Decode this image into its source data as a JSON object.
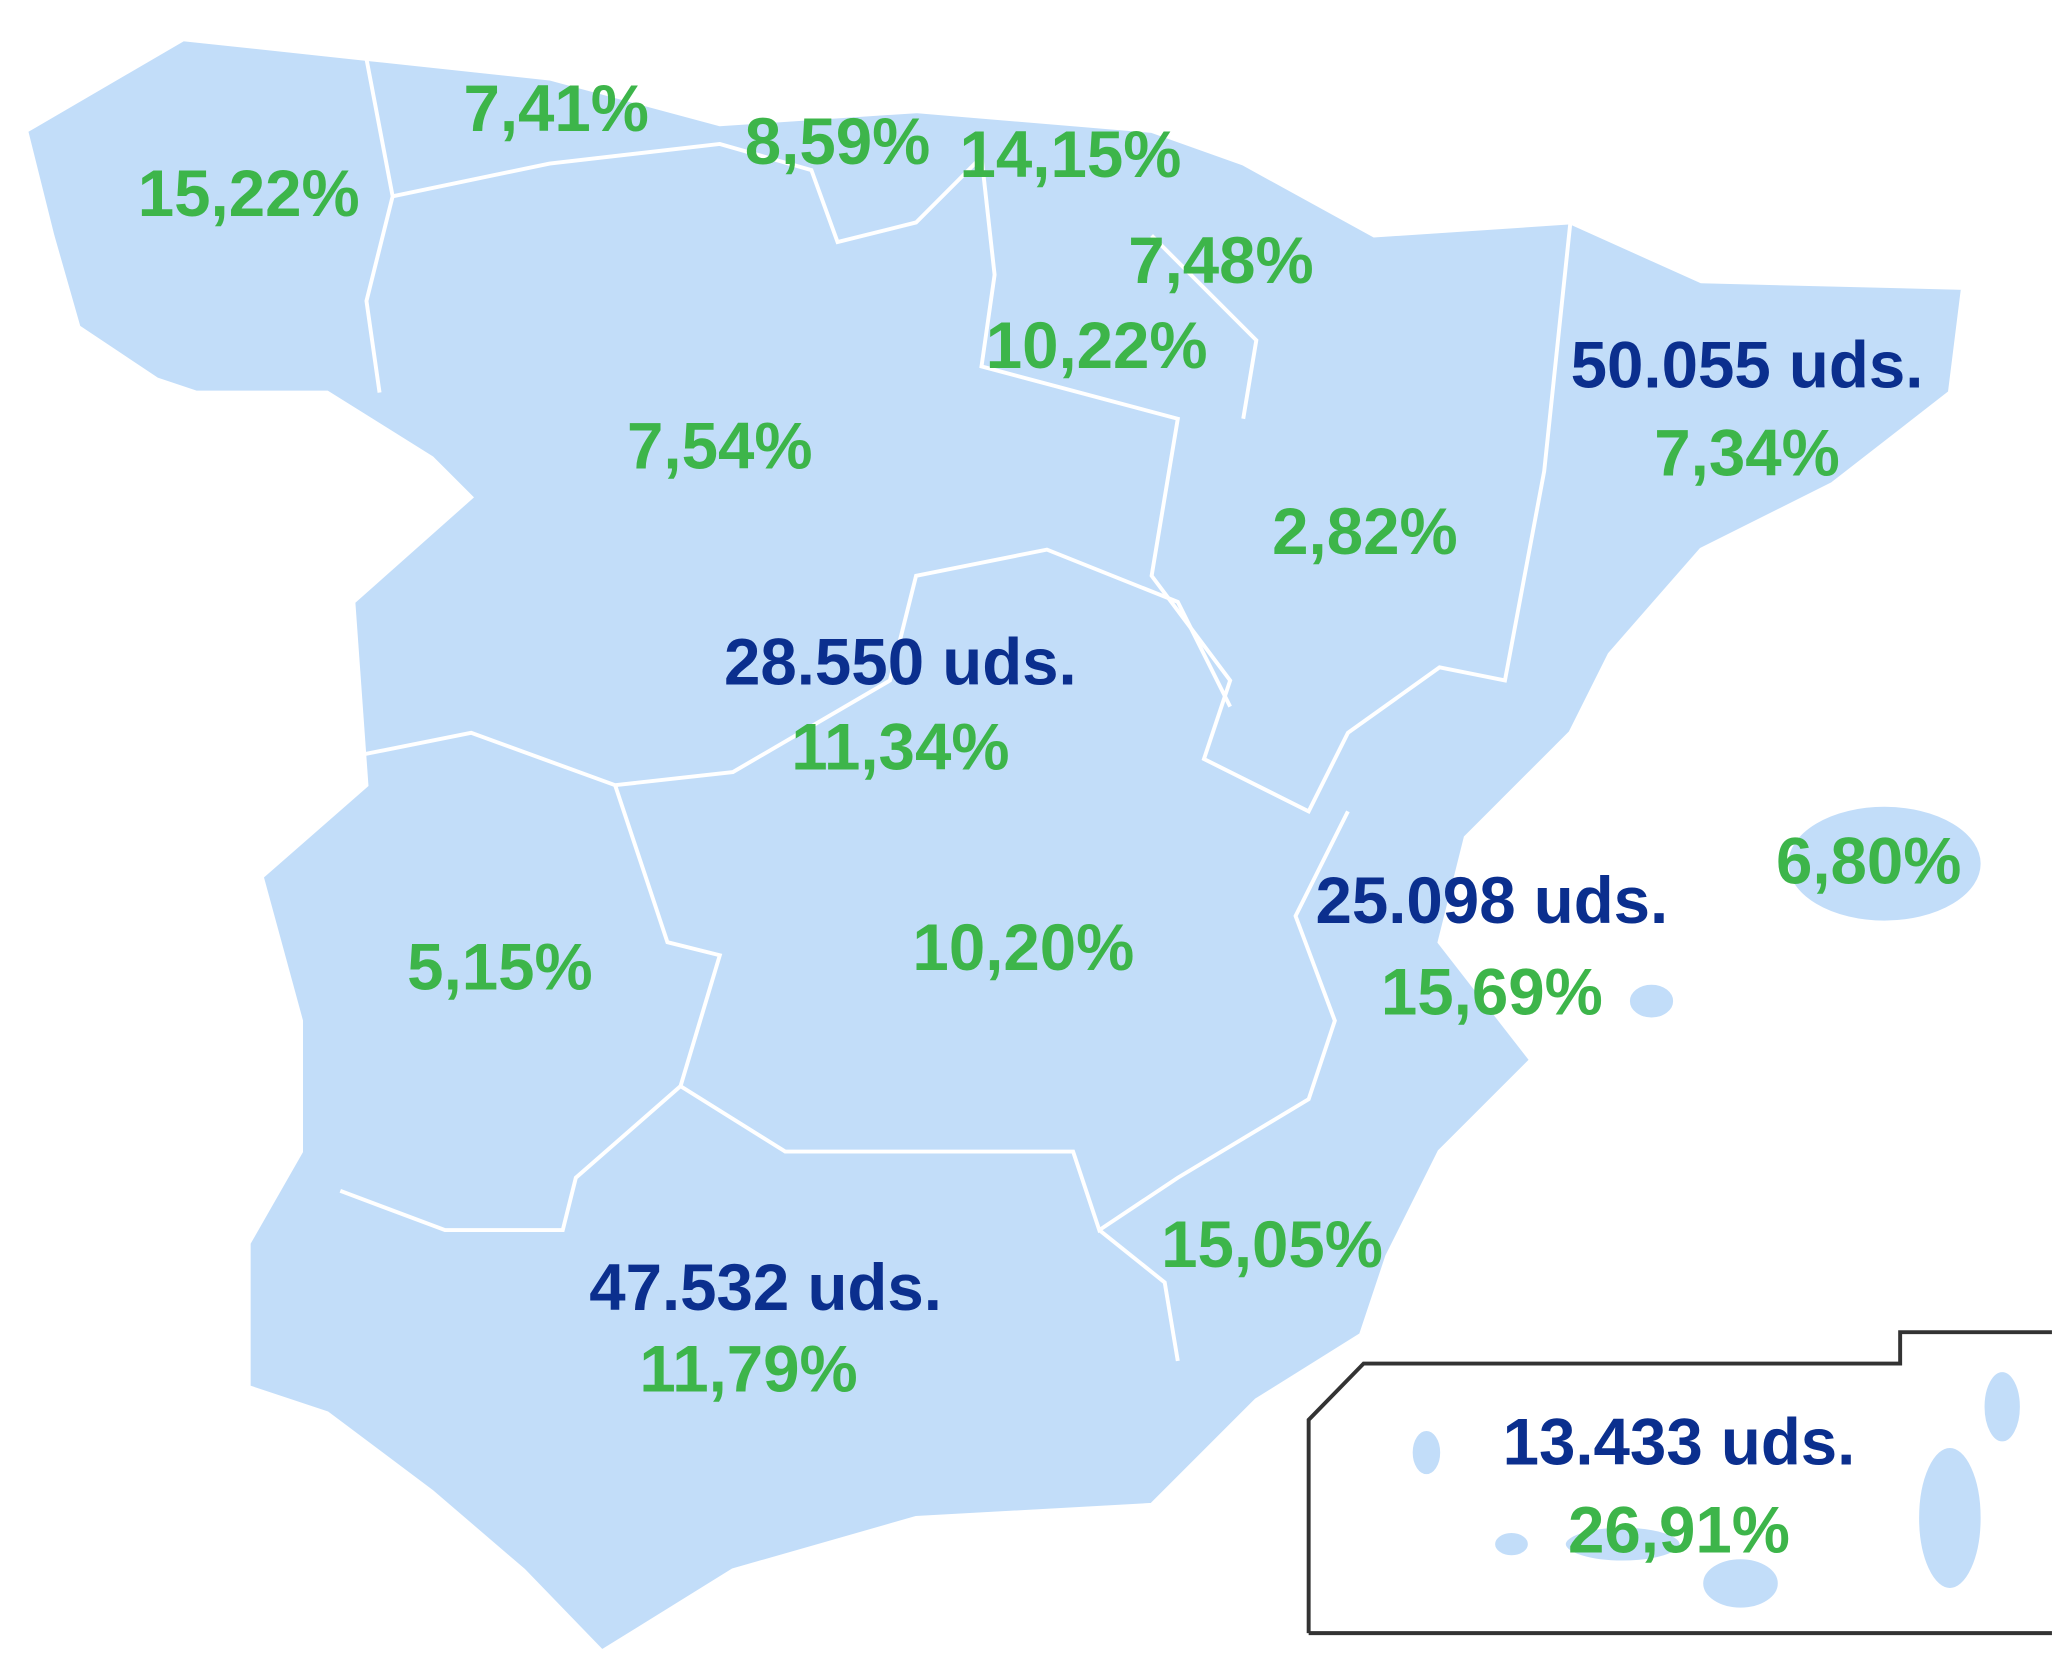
{
  "regions": [
    {
      "share": "15,22%"
    },
    {
      "share": "7,41%"
    },
    {
      "share": "8,59%"
    },
    {
      "share": "14,15%"
    },
    {
      "share": "7,48%"
    },
    {
      "share": "10,22%"
    },
    {
      "units": "50.055 uds.",
      "share": "7,34%"
    },
    {
      "share": "7,54%"
    },
    {
      "share": "2,82%"
    },
    {
      "units": "28.550 uds.",
      "share": "11,34%"
    },
    {
      "share": "6,80%"
    },
    {
      "units": "25.098 uds.",
      "share": "15,69%"
    },
    {
      "share": "5,15%"
    },
    {
      "share": "10,20%"
    },
    {
      "share": "15,05%"
    },
    {
      "units": "47.532 uds.",
      "share": "11,79%"
    },
    {
      "units": "13.433 uds.",
      "share": "26,91%"
    }
  ]
}
